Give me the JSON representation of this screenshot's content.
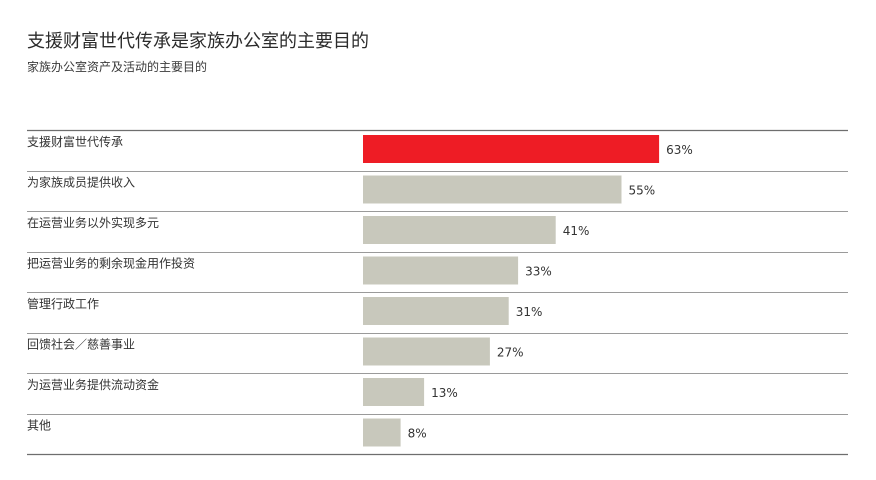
{
  "title": "支援财富世代传承是家族办公室的主要目的",
  "subtitle": "家族办公室资产及活动的主要目的",
  "colors": {
    "highlight": "#ee1c25",
    "bar": "#c8c8bc",
    "rule": "#9a9a9a",
    "rule_strong": "#6e6e6e"
  },
  "chart_data": {
    "type": "bar",
    "orientation": "horizontal",
    "categories": [
      "支援财富世代传承",
      "为家族成员提供收入",
      "在运营业务以外实现多元",
      "把运营业务的剩余现金用作投资",
      "管理行政工作",
      "回馈社会／慈善事业",
      "为运营业务提供流动资金",
      "其他"
    ],
    "values": [
      63,
      55,
      41,
      33,
      31,
      27,
      13,
      8
    ],
    "value_labels": [
      "63%",
      "55%",
      "41%",
      "33%",
      "31%",
      "27%",
      "13%",
      "8%"
    ],
    "highlight_index": 0,
    "unit": "%",
    "title": "支援财富世代传承是家族办公室的主要目的",
    "subtitle": "家族办公室资产及活动的主要目的",
    "grid": false,
    "legend": "none"
  }
}
